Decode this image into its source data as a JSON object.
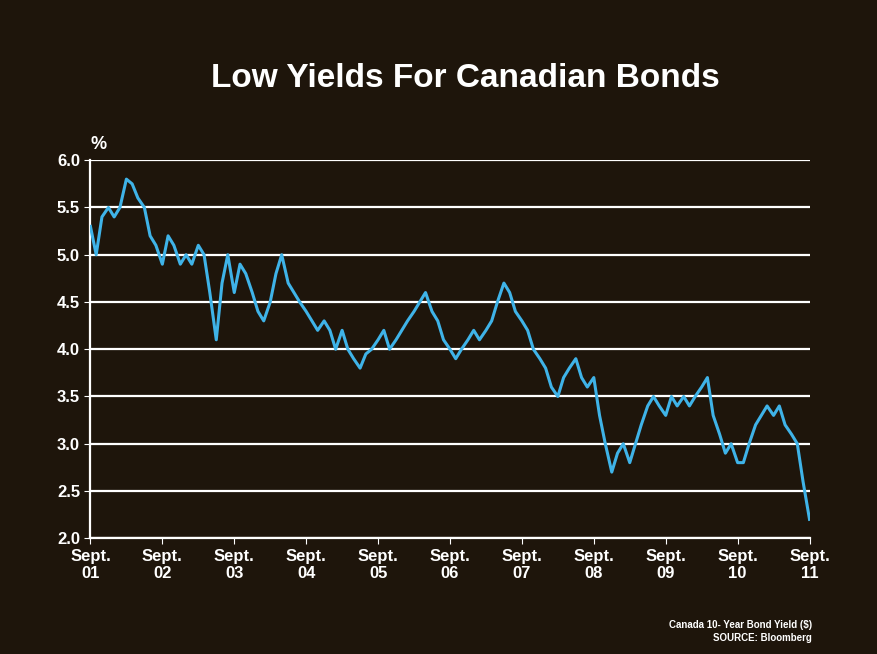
{
  "chart_data": {
    "type": "line",
    "title": "Low Yields For Canadian Bonds",
    "y_label": "%",
    "notes": [
      "Canada 10- Year Bond Yield ($)",
      "SOURCE: Bloomberg"
    ],
    "x": [
      2001.67,
      2001.75,
      2001.83,
      2001.92,
      2002.0,
      2002.08,
      2002.17,
      2002.25,
      2002.33,
      2002.42,
      2002.5,
      2002.58,
      2002.67,
      2002.75,
      2002.83,
      2002.92,
      2003.0,
      2003.08,
      2003.17,
      2003.25,
      2003.33,
      2003.42,
      2003.5,
      2003.58,
      2003.67,
      2003.75,
      2003.83,
      2003.92,
      2004.0,
      2004.08,
      2004.17,
      2004.25,
      2004.33,
      2004.42,
      2004.5,
      2004.58,
      2004.67,
      2004.75,
      2004.83,
      2004.92,
      2005.0,
      2005.08,
      2005.17,
      2005.25,
      2005.33,
      2005.42,
      2005.5,
      2005.58,
      2005.67,
      2005.75,
      2005.83,
      2005.92,
      2006.0,
      2006.08,
      2006.17,
      2006.25,
      2006.33,
      2006.42,
      2006.5,
      2006.58,
      2006.67,
      2006.75,
      2006.83,
      2006.92,
      2007.0,
      2007.08,
      2007.17,
      2007.25,
      2007.33,
      2007.42,
      2007.5,
      2007.58,
      2007.67,
      2007.75,
      2007.83,
      2007.92,
      2008.0,
      2008.08,
      2008.17,
      2008.25,
      2008.33,
      2008.42,
      2008.5,
      2008.58,
      2008.67,
      2008.75,
      2008.83,
      2008.92,
      2009.0,
      2009.08,
      2009.17,
      2009.25,
      2009.33,
      2009.42,
      2009.5,
      2009.58,
      2009.67,
      2009.75,
      2009.83,
      2009.92,
      2010.0,
      2010.08,
      2010.17,
      2010.25,
      2010.33,
      2010.42,
      2010.5,
      2010.58,
      2010.67,
      2010.75,
      2010.83,
      2010.92,
      2011.0,
      2011.08,
      2011.17,
      2011.25,
      2011.33,
      2011.42,
      2011.5,
      2011.58,
      2011.67
    ],
    "values": [
      5.3,
      5.0,
      5.4,
      5.5,
      5.4,
      5.5,
      5.8,
      5.75,
      5.6,
      5.5,
      5.2,
      5.1,
      4.9,
      5.2,
      5.1,
      4.9,
      5.0,
      4.9,
      5.1,
      5.0,
      4.6,
      4.1,
      4.7,
      5.0,
      4.6,
      4.9,
      4.8,
      4.6,
      4.4,
      4.3,
      4.5,
      4.8,
      5.0,
      4.7,
      4.6,
      4.5,
      4.4,
      4.3,
      4.2,
      4.3,
      4.2,
      4.0,
      4.2,
      4.0,
      3.9,
      3.8,
      3.95,
      4.0,
      4.1,
      4.2,
      4.0,
      4.1,
      4.2,
      4.3,
      4.4,
      4.5,
      4.6,
      4.4,
      4.3,
      4.1,
      4.0,
      3.9,
      4.0,
      4.1,
      4.2,
      4.1,
      4.2,
      4.3,
      4.5,
      4.7,
      4.6,
      4.4,
      4.3,
      4.2,
      4.0,
      3.9,
      3.8,
      3.6,
      3.5,
      3.7,
      3.8,
      3.9,
      3.7,
      3.6,
      3.7,
      3.3,
      3.0,
      2.7,
      2.9,
      3.0,
      2.8,
      3.0,
      3.2,
      3.4,
      3.5,
      3.4,
      3.3,
      3.5,
      3.4,
      3.5,
      3.4,
      3.5,
      3.6,
      3.7,
      3.3,
      3.1,
      2.9,
      3.0,
      2.8,
      2.8,
      3.0,
      3.2,
      3.3,
      3.4,
      3.3,
      3.4,
      3.2,
      3.1,
      3.0,
      2.6,
      2.2
    ],
    "color": "#3fb3e8",
    "xlim": [
      2001.67,
      2011.67
    ],
    "xticks": [
      {
        "value": 2001.67,
        "label": "Sept.\n01"
      },
      {
        "value": 2002.67,
        "label": "Sept.\n02"
      },
      {
        "value": 2003.67,
        "label": "Sept.\n03"
      },
      {
        "value": 2004.67,
        "label": "Sept.\n04"
      },
      {
        "value": 2005.67,
        "label": "Sept.\n05"
      },
      {
        "value": 2006.67,
        "label": "Sept.\n06"
      },
      {
        "value": 2007.67,
        "label": "Sept.\n07"
      },
      {
        "value": 2008.67,
        "label": "Sept.\n08"
      },
      {
        "value": 2009.67,
        "label": "Sept.\n09"
      },
      {
        "value": 2010.67,
        "label": "Sept.\n10"
      },
      {
        "value": 2011.67,
        "label": "Sept.\n11"
      }
    ],
    "ylim": [
      2.0,
      6.0
    ],
    "yticks": [
      {
        "value": 2.0,
        "label": "2.0"
      },
      {
        "value": 2.5,
        "label": "2.5"
      },
      {
        "value": 3.0,
        "label": "3.0"
      },
      {
        "value": 3.5,
        "label": "3.5"
      },
      {
        "value": 4.0,
        "label": "4.0"
      },
      {
        "value": 4.5,
        "label": "4.5"
      },
      {
        "value": 5.0,
        "label": "5.0"
      },
      {
        "value": 5.5,
        "label": "5.5"
      },
      {
        "value": 6.0,
        "label": "6.0"
      }
    ],
    "grid": true
  }
}
